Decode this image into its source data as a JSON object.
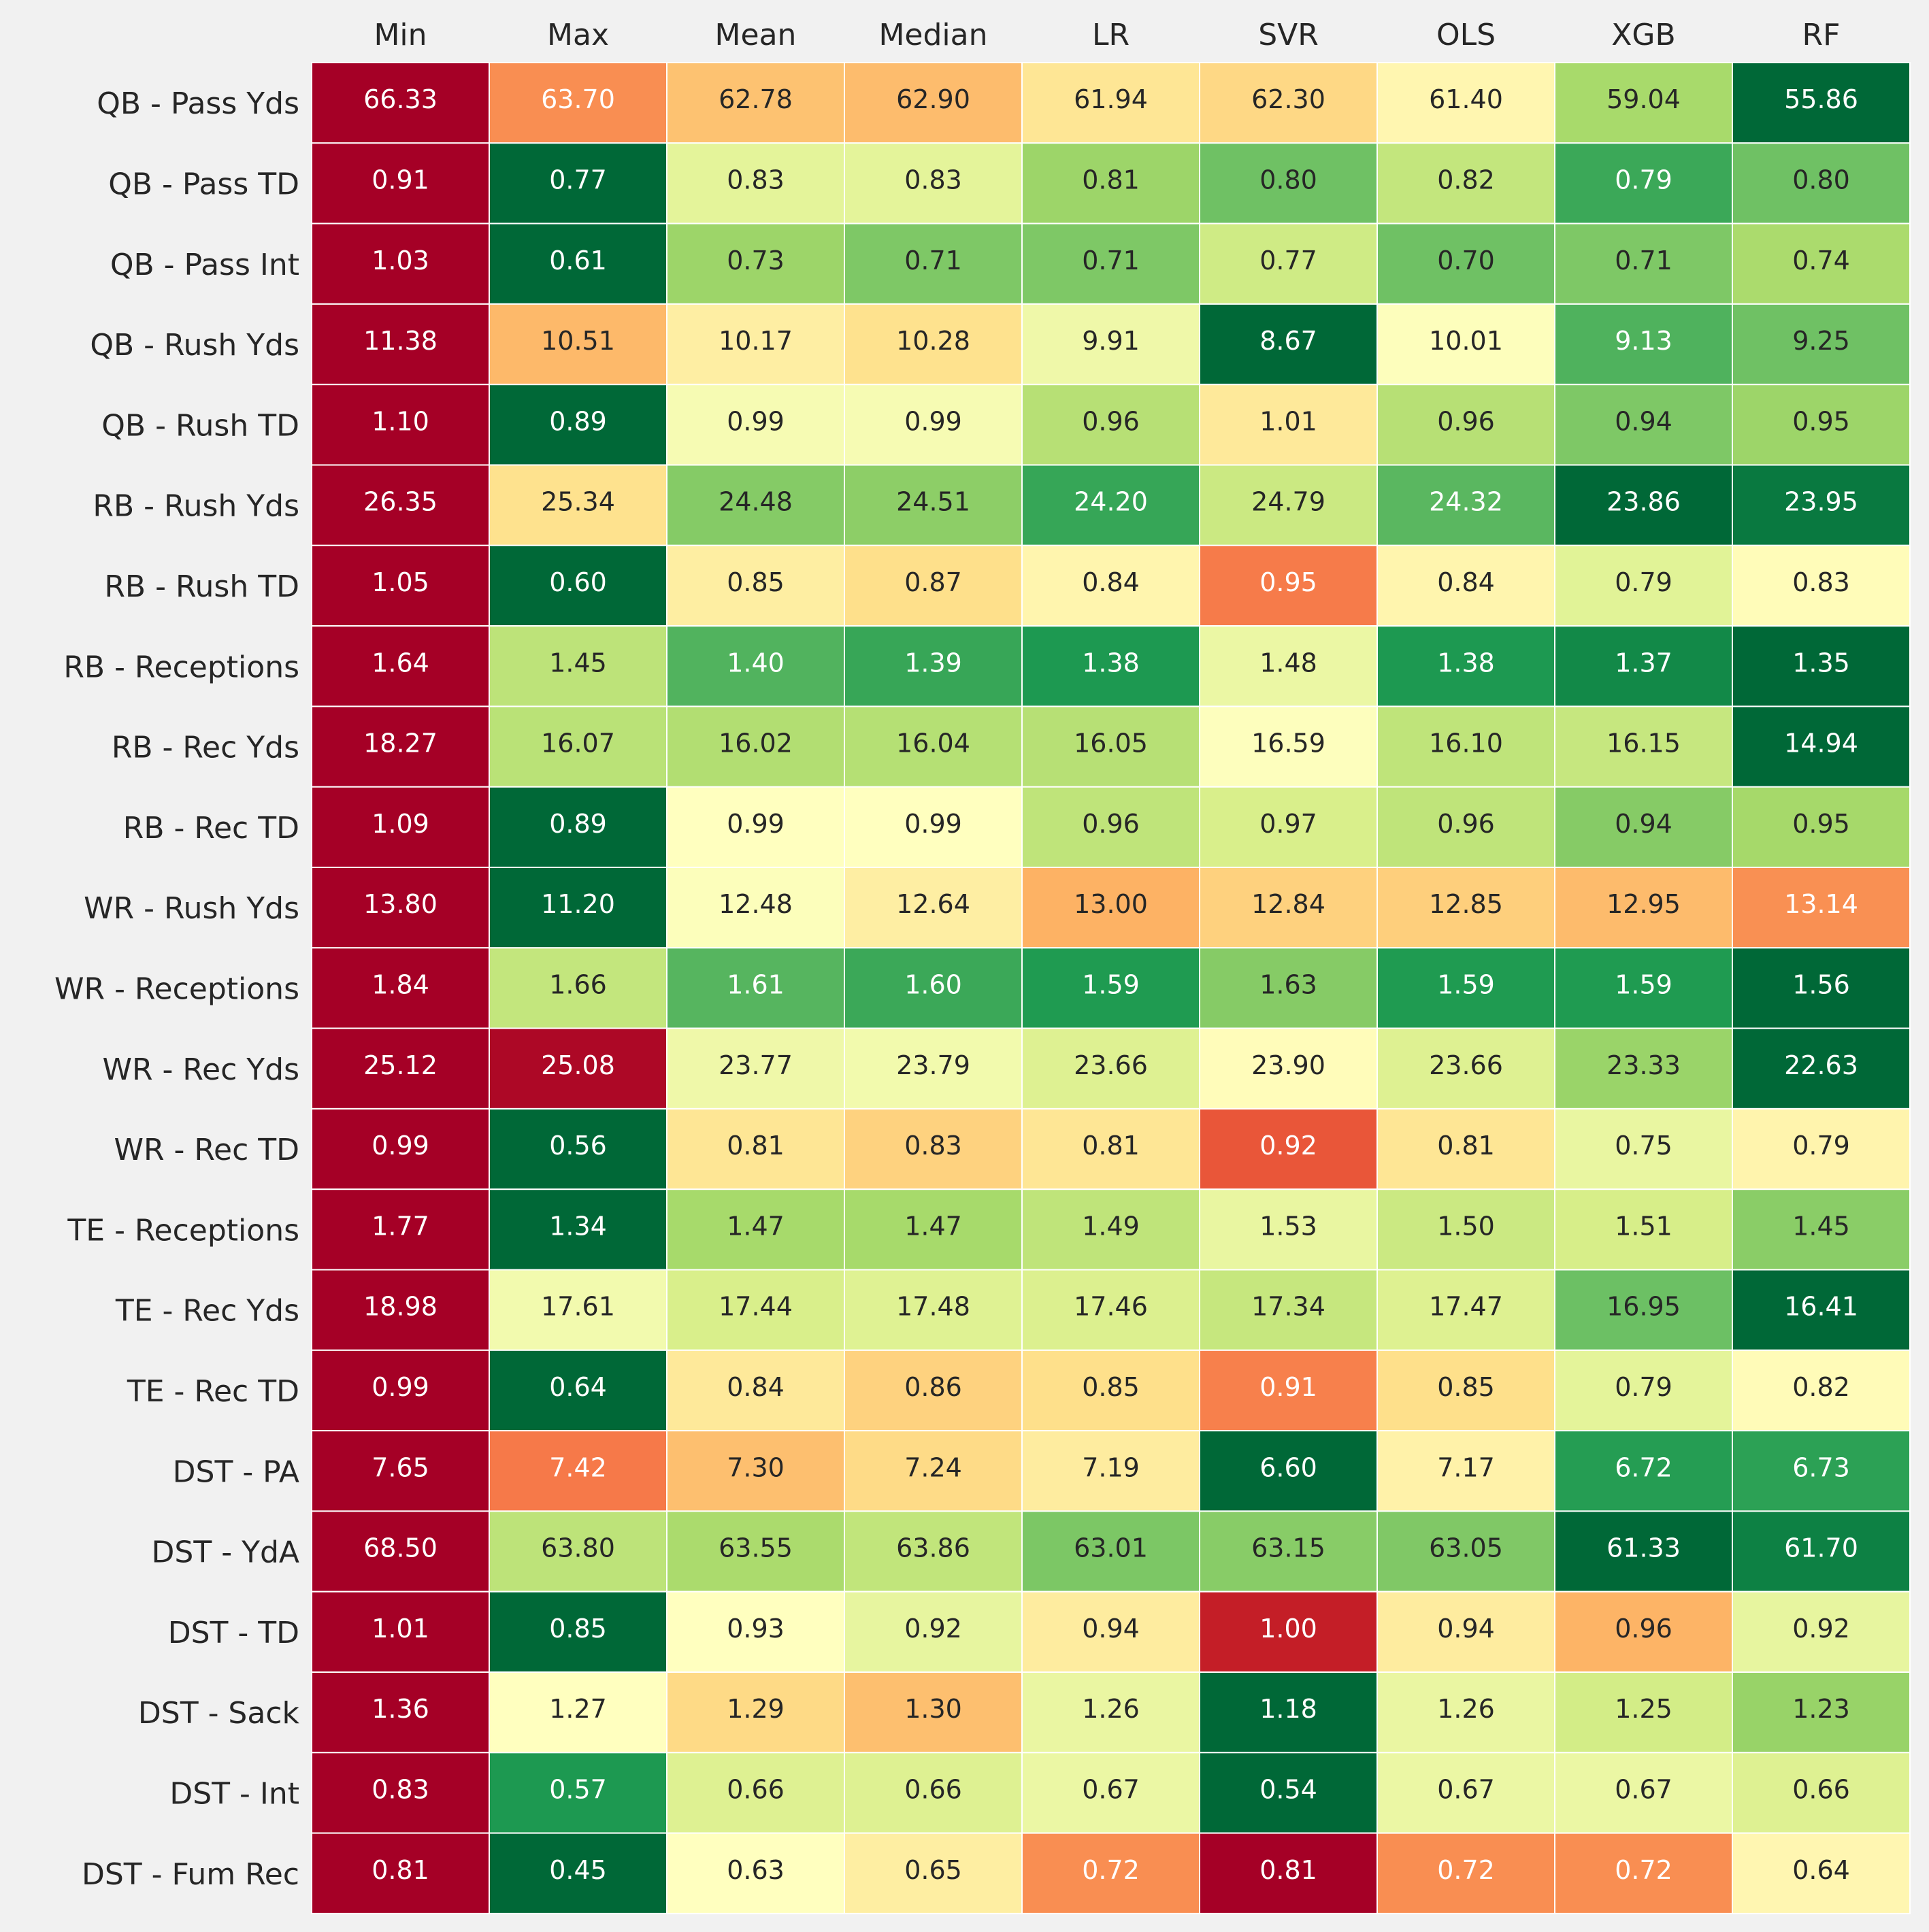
{
  "chart_data": {
    "type": "heatmap",
    "title": "",
    "colormap": "RdYlGn_r",
    "columns": [
      "Min",
      "Max",
      "Mean",
      "Median",
      "LR",
      "SVR",
      "OLS",
      "XGB",
      "RF"
    ],
    "rows": [
      {
        "label": "QB - Pass Yds",
        "values": [
          66.33,
          63.7,
          62.78,
          62.9,
          61.94,
          62.3,
          61.4,
          59.04,
          55.86
        ]
      },
      {
        "label": "QB - Pass TD",
        "values": [
          0.91,
          0.77,
          0.83,
          0.83,
          0.81,
          0.8,
          0.82,
          0.79,
          0.8
        ]
      },
      {
        "label": "QB - Pass Int",
        "values": [
          1.03,
          0.61,
          0.73,
          0.71,
          0.71,
          0.77,
          0.7,
          0.71,
          0.74
        ]
      },
      {
        "label": "QB - Rush Yds",
        "values": [
          11.38,
          10.51,
          10.17,
          10.28,
          9.91,
          8.67,
          10.01,
          9.13,
          9.25
        ]
      },
      {
        "label": "QB - Rush TD",
        "values": [
          1.1,
          0.89,
          0.99,
          0.99,
          0.96,
          1.01,
          0.96,
          0.94,
          0.95
        ]
      },
      {
        "label": "RB - Rush Yds",
        "values": [
          26.35,
          25.34,
          24.48,
          24.51,
          24.2,
          24.79,
          24.32,
          23.86,
          23.95
        ]
      },
      {
        "label": "RB - Rush TD",
        "values": [
          1.05,
          0.6,
          0.85,
          0.87,
          0.84,
          0.95,
          0.84,
          0.79,
          0.83
        ]
      },
      {
        "label": "RB - Receptions",
        "values": [
          1.64,
          1.45,
          1.4,
          1.39,
          1.38,
          1.48,
          1.38,
          1.37,
          1.35
        ]
      },
      {
        "label": "RB - Rec Yds",
        "values": [
          18.27,
          16.07,
          16.02,
          16.04,
          16.05,
          16.59,
          16.1,
          16.15,
          14.94
        ]
      },
      {
        "label": "RB - Rec TD",
        "values": [
          1.09,
          0.89,
          0.99,
          0.99,
          0.96,
          0.97,
          0.96,
          0.94,
          0.95
        ]
      },
      {
        "label": "WR - Rush Yds",
        "values": [
          13.8,
          11.2,
          12.48,
          12.64,
          13.0,
          12.84,
          12.85,
          12.95,
          13.14
        ]
      },
      {
        "label": "WR - Receptions",
        "values": [
          1.84,
          1.66,
          1.61,
          1.6,
          1.59,
          1.63,
          1.59,
          1.59,
          1.56
        ]
      },
      {
        "label": "WR - Rec Yds",
        "values": [
          25.12,
          25.08,
          23.77,
          23.79,
          23.66,
          23.9,
          23.66,
          23.33,
          22.63
        ]
      },
      {
        "label": "WR - Rec TD",
        "values": [
          0.99,
          0.56,
          0.81,
          0.83,
          0.81,
          0.92,
          0.81,
          0.75,
          0.79
        ]
      },
      {
        "label": "TE - Receptions",
        "values": [
          1.77,
          1.34,
          1.47,
          1.47,
          1.49,
          1.53,
          1.5,
          1.51,
          1.45
        ]
      },
      {
        "label": "TE - Rec Yds",
        "values": [
          18.98,
          17.61,
          17.44,
          17.48,
          17.46,
          17.34,
          17.47,
          16.95,
          16.41
        ]
      },
      {
        "label": "TE - Rec TD",
        "values": [
          0.99,
          0.64,
          0.84,
          0.86,
          0.85,
          0.91,
          0.85,
          0.79,
          0.82
        ]
      },
      {
        "label": "DST - PA",
        "values": [
          7.65,
          7.42,
          7.3,
          7.24,
          7.19,
          6.6,
          7.17,
          6.72,
          6.73
        ]
      },
      {
        "label": "DST - YdA",
        "values": [
          68.5,
          63.8,
          63.55,
          63.86,
          63.01,
          63.15,
          63.05,
          61.33,
          61.7
        ]
      },
      {
        "label": "DST - TD",
        "values": [
          1.01,
          0.85,
          0.93,
          0.92,
          0.94,
          1.0,
          0.94,
          0.96,
          0.92
        ]
      },
      {
        "label": "DST - Sack",
        "values": [
          1.36,
          1.27,
          1.29,
          1.3,
          1.26,
          1.18,
          1.26,
          1.25,
          1.23
        ]
      },
      {
        "label": "DST - Int",
        "values": [
          0.83,
          0.57,
          0.66,
          0.66,
          0.67,
          0.54,
          0.67,
          0.67,
          0.66
        ]
      },
      {
        "label": "DST - Fum Rec",
        "values": [
          0.81,
          0.45,
          0.63,
          0.65,
          0.72,
          0.81,
          0.72,
          0.72,
          0.64
        ]
      }
    ]
  }
}
